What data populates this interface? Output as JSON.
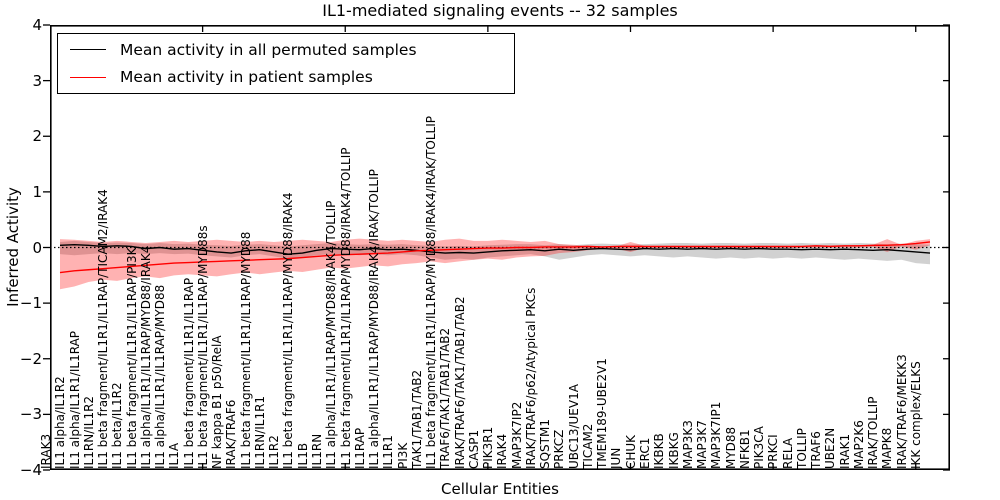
{
  "title": "IL1-mediated signaling events -- 32 samples",
  "legend": {
    "entries": [
      {
        "label": "Mean activity in all permuted samples",
        "color": "#000000"
      },
      {
        "label": "Mean activity in patient samples",
        "color": "#ff0000"
      }
    ]
  },
  "chart_data": {
    "type": "line",
    "title": "IL1-mediated signaling events -- 32 samples",
    "xlabel": "Cellular Entities",
    "ylabel": "Inferred Activity",
    "ylim": [
      -4,
      4
    ],
    "ytick_values": [
      4,
      3,
      2,
      1,
      0,
      -1,
      -2,
      -3,
      -4
    ],
    "ytick_labels": [
      "4",
      "3",
      "2",
      "1",
      "0",
      "−1",
      "−2",
      "−3",
      "−4"
    ],
    "grid": false,
    "legend_position": "upper left",
    "zero_reference_line": "dotted black at y=0",
    "categories": [
      "IRAK3",
      "IL1 alpha/IL1R2",
      "IL1 alpha/IL1R1/IL1RAP",
      "IL1RN/IL1R2",
      "IL1 beta fragment/IL1R1/IL1RAP/TICAM2/IRAK4",
      "IL1 beta/IL1R2",
      "IL1 beta fragment/IL1R1/IL1RAP/PI3K",
      "IL1 alpha/IL1R1/IL1RAP/MYD88/IRAK4",
      "IL1 alpha/IL1R1/IL1RAP/MYD88",
      "IL1A",
      "IL1 beta fragment/IL1R1/IL1RAP",
      "IL1 beta fragment/IL1R1/IL1RAP/MYD88s",
      "NF kappa B1 p50/RelA",
      "IRAK/TRAF6",
      "IL1 beta fragment/IL1R1/IL1RAP/MYD88",
      "IL1RN/IL1R1",
      "IL1R2",
      "IL1 beta fragment/IL1R1/IL1RAP/MYD88/IRAK4",
      "IL1B",
      "IL1RN",
      "IL1 alpha/IL1R1/IL1RAP/MYD88/IRAK4/TOLLIP",
      "IL1 beta fragment/IL1R1/IL1RAP/MYD88/IRAK4/TOLLIP",
      "IL1RAP",
      "IL1 alpha/IL1R1/IL1RAP/MYD88/IRAK4/IRAK/TOLLIP",
      "IL1R1",
      "PI3K",
      "TAK1/TAB1/TAB2",
      "IL1 beta fragment/IL1R1/IL1RAP/MYD88/IRAK4/IRAK/TOLLIP",
      "TRAF6/TAK1/TAB1/TAB2",
      "IRAK/TRAF6/TAK1/TAB1/TAB2",
      "CASP1",
      "PIK3R1",
      "IRAK4",
      "MAP3K7IP2",
      "IRAK/TRAF6/p62/Atypical PKCs",
      "SQSTM1",
      "PRKCZ",
      "UBC13/UEV1A",
      "TICAM2",
      "TMEM189-UBE2V1",
      "JUN",
      "CHUK",
      "ERC1",
      "IKBKB",
      "IKBKG",
      "MAP3K3",
      "MAP3K7",
      "MAP3K7IP1",
      "MYD88",
      "NFKB1",
      "PIK3CA",
      "PRKCI",
      "RELA",
      "TOLLIP",
      "TRAF6",
      "UBE2N",
      "IRAK1",
      "MAP2K6",
      "IRAK/TOLLIP",
      "MAPK8",
      "IRAK/TRAF6/MEKK3",
      "IKK complex/ELKS"
    ],
    "series": [
      {
        "name": "Mean activity in all permuted samples",
        "color": "#000000",
        "style": "solid",
        "values": [
          0.04,
          0.05,
          0.04,
          0.02,
          0.03,
          0.02,
          -0.02,
          0.0,
          -0.03,
          -0.02,
          -0.05,
          -0.08,
          -0.1,
          -0.06,
          -0.04,
          -0.08,
          -0.12,
          -0.1,
          -0.05,
          -0.02,
          -0.03,
          -0.04,
          -0.02,
          -0.04,
          -0.03,
          -0.05,
          -0.08,
          -0.1,
          -0.09,
          -0.1,
          -0.08,
          -0.06,
          -0.05,
          -0.04,
          -0.06,
          -0.03,
          -0.05,
          -0.03,
          -0.02,
          -0.03,
          -0.04,
          -0.02,
          -0.03,
          -0.02,
          -0.03,
          -0.02,
          -0.03,
          -0.02,
          -0.03,
          -0.02,
          -0.03,
          -0.03,
          -0.04,
          -0.03,
          -0.04,
          -0.03,
          -0.04,
          -0.05,
          -0.04,
          -0.06,
          -0.08,
          -0.1
        ]
      },
      {
        "name": "Mean activity in patient samples",
        "color": "#ff0000",
        "style": "solid",
        "values": [
          -0.45,
          -0.42,
          -0.4,
          -0.38,
          -0.36,
          -0.34,
          -0.32,
          -0.3,
          -0.28,
          -0.27,
          -0.26,
          -0.25,
          -0.24,
          -0.23,
          -0.22,
          -0.21,
          -0.2,
          -0.18,
          -0.16,
          -0.14,
          -0.13,
          -0.12,
          -0.11,
          -0.1,
          -0.08,
          -0.06,
          -0.05,
          -0.04,
          -0.03,
          -0.02,
          -0.01,
          -0.01,
          0.0,
          0.0,
          0.01,
          0.01,
          0.01,
          0.02,
          0.01,
          0.02,
          0.02,
          0.02,
          0.02,
          0.02,
          0.02,
          0.02,
          0.02,
          0.02,
          0.02,
          0.02,
          0.02,
          0.02,
          0.02,
          0.03,
          0.02,
          0.03,
          0.03,
          0.04,
          0.04,
          0.05,
          0.07,
          0.1
        ]
      }
    ],
    "bands": [
      {
        "name": "permuted samples spread",
        "color": "#999999",
        "opacity": 0.45,
        "upper": [
          0.1,
          0.12,
          0.1,
          0.08,
          0.09,
          0.08,
          0.06,
          0.08,
          0.06,
          0.07,
          0.05,
          0.04,
          0.03,
          0.05,
          0.06,
          0.04,
          0.02,
          0.04,
          0.06,
          0.08,
          0.06,
          0.05,
          0.06,
          0.05,
          0.06,
          0.04,
          0.03,
          0.02,
          0.03,
          0.02,
          0.04,
          0.05,
          0.06,
          0.06,
          0.04,
          0.06,
          0.04,
          0.06,
          0.07,
          0.06,
          0.05,
          0.06,
          0.07,
          0.08,
          0.08,
          0.07,
          0.08,
          0.08,
          0.07,
          0.08,
          0.08,
          0.07,
          0.08,
          0.07,
          0.08,
          0.07,
          0.08,
          0.07,
          0.06,
          0.07,
          0.06,
          0.05
        ],
        "lower": [
          -0.12,
          -0.14,
          -0.12,
          -0.1,
          -0.12,
          -0.1,
          -0.12,
          -0.1,
          -0.12,
          -0.11,
          -0.14,
          -0.16,
          -0.18,
          -0.14,
          -0.12,
          -0.16,
          -0.2,
          -0.18,
          -0.14,
          -0.12,
          -0.12,
          -0.14,
          -0.12,
          -0.14,
          -0.12,
          -0.14,
          -0.18,
          -0.22,
          -0.2,
          -0.22,
          -0.18,
          -0.16,
          -0.14,
          -0.12,
          -0.16,
          -0.22,
          -0.18,
          -0.14,
          -0.12,
          -0.14,
          -0.16,
          -0.14,
          -0.16,
          -0.18,
          -0.16,
          -0.18,
          -0.2,
          -0.18,
          -0.2,
          -0.18,
          -0.2,
          -0.18,
          -0.2,
          -0.18,
          -0.2,
          -0.22,
          -0.2,
          -0.22,
          -0.24,
          -0.22,
          -0.28,
          -0.3
        ]
      },
      {
        "name": "patient samples spread",
        "color": "#ff0000",
        "opacity": 0.3,
        "upper": [
          0.15,
          0.14,
          0.12,
          0.1,
          0.12,
          0.1,
          0.08,
          0.1,
          0.12,
          0.1,
          0.12,
          0.14,
          0.12,
          0.1,
          0.12,
          0.1,
          0.12,
          0.14,
          0.12,
          0.1,
          0.14,
          0.16,
          0.14,
          0.12,
          0.14,
          0.12,
          0.1,
          0.14,
          0.16,
          0.12,
          0.12,
          0.14,
          0.12,
          0.1,
          0.12,
          0.06,
          0.05,
          0.03,
          0.02,
          0.02,
          0.1,
          0.03,
          0.03,
          0.03,
          0.03,
          0.03,
          0.03,
          0.03,
          0.03,
          0.03,
          0.03,
          0.03,
          0.03,
          0.04,
          0.04,
          0.04,
          0.04,
          0.05,
          0.15,
          0.05,
          0.12,
          0.15
        ],
        "lower": [
          -0.75,
          -0.7,
          -0.62,
          -0.58,
          -0.6,
          -0.55,
          -0.52,
          -0.55,
          -0.5,
          -0.48,
          -0.5,
          -0.52,
          -0.48,
          -0.45,
          -0.48,
          -0.45,
          -0.42,
          -0.44,
          -0.4,
          -0.36,
          -0.38,
          -0.35,
          -0.32,
          -0.34,
          -0.3,
          -0.28,
          -0.25,
          -0.28,
          -0.25,
          -0.22,
          -0.2,
          -0.22,
          -0.18,
          -0.16,
          -0.15,
          -0.1,
          -0.08,
          -0.05,
          -0.03,
          -0.02,
          -0.08,
          -0.01,
          -0.01,
          -0.01,
          -0.01,
          -0.01,
          -0.01,
          -0.01,
          -0.01,
          -0.01,
          -0.01,
          -0.01,
          -0.01,
          0.0,
          0.0,
          0.0,
          0.0,
          0.01,
          -0.08,
          0.02,
          -0.04,
          0.04
        ]
      }
    ]
  }
}
